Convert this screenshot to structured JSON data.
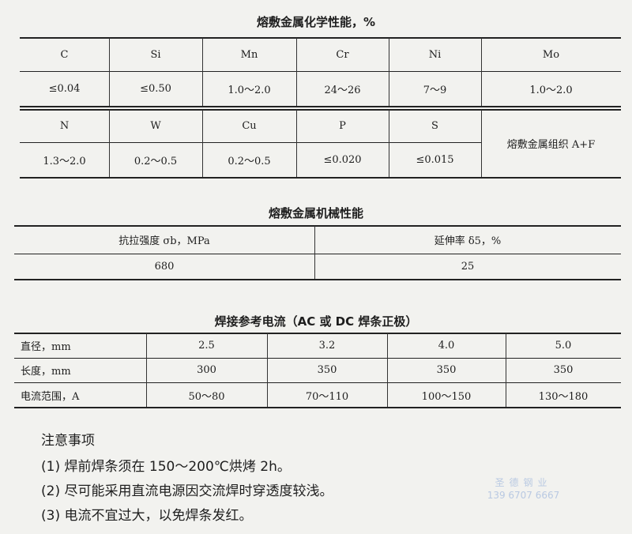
{
  "chemical": {
    "title": "熔敷金属化学性能，%",
    "row1_headers": [
      "C",
      "Si",
      "Mn",
      "Cr",
      "Ni",
      "Mo"
    ],
    "row1_values": [
      "≤0.04",
      "≤0.50",
      "1.0～2.0",
      "24～26",
      "7～9",
      "1.0～2.0"
    ],
    "row2_headers": [
      "N",
      "W",
      "Cu",
      "P",
      "S"
    ],
    "row2_values": [
      "1.3～2.0",
      "0.2～0.5",
      "0.2～0.5",
      "≤0.020",
      "≤0.015"
    ],
    "structure": "熔敷金属组织 A+F"
  },
  "mechanical": {
    "title": "熔敷金属机械性能",
    "headers": [
      "抗拉强度 σb，MPa",
      "延伸率 δ5，%"
    ],
    "values": [
      "680",
      "25"
    ]
  },
  "current": {
    "title": "焊接参考电流（AC 或 DC 焊条正极）",
    "rows": [
      {
        "label": "直径，mm",
        "values": [
          "2.5",
          "3.2",
          "4.0",
          "5.0"
        ]
      },
      {
        "label": "长度，mm",
        "values": [
          "300",
          "350",
          "350",
          "350"
        ]
      },
      {
        "label": "电流范围，A",
        "values": [
          "50～80",
          "70～110",
          "100～150",
          "130～180"
        ]
      }
    ]
  },
  "notes": {
    "heading": "注意事项",
    "items": [
      "(1) 焊前焊条须在 150～200℃烘烤 2h。",
      "(2) 尽可能采用直流电源因交流焊时穿透度较浅。",
      "(3) 电流不宜过大，以免焊条发红。"
    ]
  },
  "watermark": {
    "name": "圣德钢业",
    "phone": "139 6707 6667"
  }
}
